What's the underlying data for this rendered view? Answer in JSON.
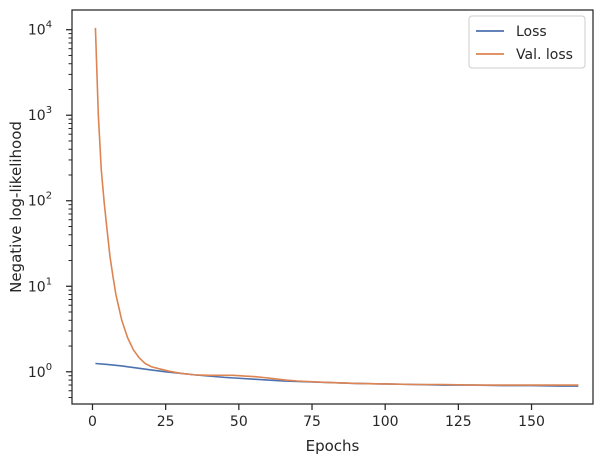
{
  "chart_data": {
    "type": "line",
    "title": "",
    "xlabel": "Epochs",
    "ylabel": "Negative log-likelihood",
    "xlim": [
      -7,
      171
    ],
    "ylim": [
      0.42,
      17000
    ],
    "yscale": "log",
    "grid": false,
    "legend_position": "top-right",
    "x_ticks": [
      0,
      25,
      50,
      75,
      100,
      125,
      150
    ],
    "x_tick_labels": [
      "0",
      "25",
      "50",
      "75",
      "100",
      "125",
      "150"
    ],
    "y_ticks": [
      {
        "value": 1,
        "base": "10",
        "exp": "0"
      },
      {
        "value": 10,
        "base": "10",
        "exp": "1"
      },
      {
        "value": 100,
        "base": "10",
        "exp": "2"
      },
      {
        "value": 1000,
        "base": "10",
        "exp": "3"
      },
      {
        "value": 10000,
        "base": "10",
        "exp": "4"
      }
    ],
    "series": [
      {
        "name": "Loss",
        "color": "#4c72b0",
        "x": [
          1,
          5,
          10,
          15,
          20,
          25,
          30,
          35,
          40,
          45,
          50,
          55,
          60,
          65,
          70,
          80,
          90,
          100,
          110,
          120,
          130,
          140,
          150,
          160,
          166
        ],
        "y": [
          1.25,
          1.22,
          1.17,
          1.11,
          1.05,
          1.0,
          0.96,
          0.92,
          0.89,
          0.86,
          0.84,
          0.82,
          0.8,
          0.78,
          0.77,
          0.75,
          0.73,
          0.72,
          0.71,
          0.7,
          0.7,
          0.69,
          0.69,
          0.68,
          0.68
        ]
      },
      {
        "name": "Val. loss",
        "color": "#dd8452",
        "x": [
          1,
          2,
          3,
          4,
          5,
          6,
          7,
          8,
          10,
          12,
          14,
          16,
          18,
          20,
          23,
          26,
          30,
          35,
          40,
          45,
          48,
          52,
          55,
          58,
          62,
          66,
          70,
          80,
          90,
          100,
          110,
          120,
          130,
          140,
          150,
          160,
          166
        ],
        "y": [
          10500,
          1000,
          230,
          95,
          45,
          22,
          13,
          8,
          4.0,
          2.5,
          1.8,
          1.45,
          1.25,
          1.15,
          1.08,
          1.02,
          0.96,
          0.92,
          0.91,
          0.91,
          0.91,
          0.89,
          0.88,
          0.86,
          0.83,
          0.8,
          0.78,
          0.75,
          0.73,
          0.72,
          0.71,
          0.71,
          0.7,
          0.7,
          0.7,
          0.7,
          0.7
        ]
      }
    ]
  }
}
